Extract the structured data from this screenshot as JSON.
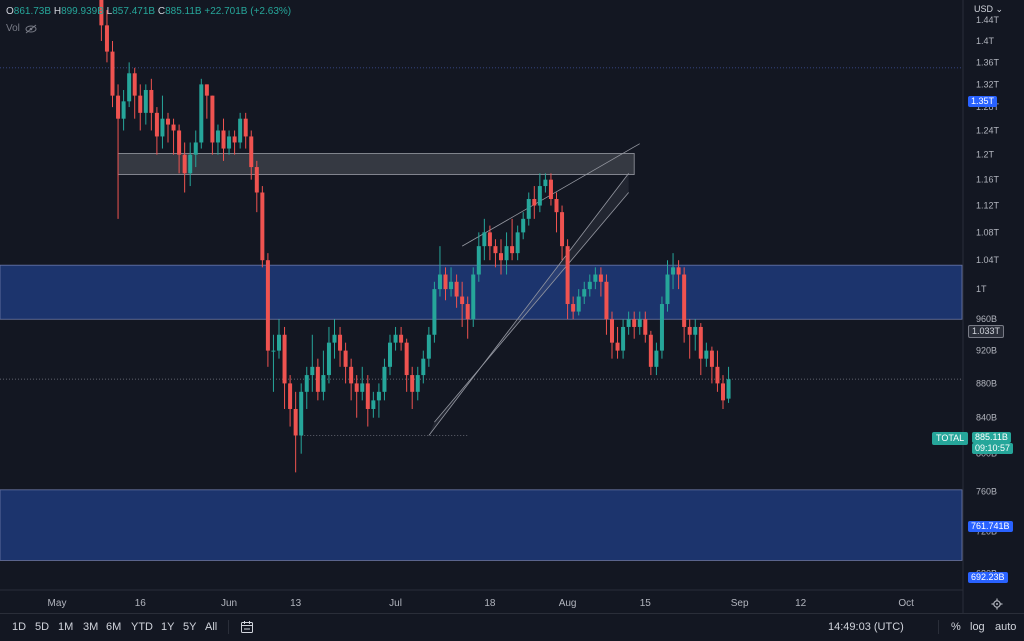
{
  "header": {
    "open_label": "O",
    "open": "861.73B",
    "high_label": "H",
    "high": "899.939B",
    "low_label": "L",
    "low": "857.471B",
    "close_label": "C",
    "close": "885.11B",
    "change": "+22.701B (+2.63%)",
    "vol_label": "Vol"
  },
  "currency": "USD",
  "symbol_label": "TOTAL",
  "price_tags": {
    "level_1": "1.35T",
    "level_2": "1.033T",
    "current": "885.11B",
    "countdown": "09:10:57",
    "level_3": "761.741B",
    "level_4": "692.23B"
  },
  "colors": {
    "up": "#26a69a",
    "down": "#ef5350",
    "zone": "#1e3a7a",
    "accent": "#2962ff",
    "background": "#131722"
  },
  "toolbar": {
    "timeframes": [
      "1D",
      "5D",
      "1M",
      "3M",
      "6M",
      "YTD",
      "1Y",
      "5Y",
      "All"
    ],
    "clock": "14:49:03 (UTC)",
    "percent_label": "%",
    "log_label": "log",
    "auto_label": "auto",
    "calendar_icon": "calendar-range-icon",
    "settings_icon": "gear-icon"
  },
  "chart_data": {
    "type": "candlestick",
    "y_unit": "USD",
    "y_scale": "log",
    "ylim": [
      665000000000,
      1480000000000
    ],
    "xlim": [
      0,
      145
    ],
    "y_ticks": [
      {
        "v": 1440000000000,
        "label": "1.44T"
      },
      {
        "v": 1400000000000,
        "label": "1.4T"
      },
      {
        "v": 1360000000000,
        "label": "1.36T"
      },
      {
        "v": 1320000000000,
        "label": "1.32T"
      },
      {
        "v": 1280000000000,
        "label": "1.28T"
      },
      {
        "v": 1240000000000,
        "label": "1.24T"
      },
      {
        "v": 1200000000000,
        "label": "1.2T"
      },
      {
        "v": 1160000000000,
        "label": "1.16T"
      },
      {
        "v": 1120000000000,
        "label": "1.12T"
      },
      {
        "v": 1080000000000,
        "label": "1.08T"
      },
      {
        "v": 1040000000000,
        "label": "1.04T"
      },
      {
        "v": 1000000000000,
        "label": "1T"
      },
      {
        "v": 960000000000,
        "label": "960B"
      },
      {
        "v": 920000000000,
        "label": "920B"
      },
      {
        "v": 880000000000,
        "label": "880B"
      },
      {
        "v": 840000000000,
        "label": "840B"
      },
      {
        "v": 800000000000,
        "label": "800B"
      },
      {
        "v": 760000000000,
        "label": "760B"
      },
      {
        "v": 720000000000,
        "label": "720B"
      },
      {
        "v": 680000000000,
        "label": "680B"
      }
    ],
    "x_ticks": [
      {
        "d": 0,
        "label": "May"
      },
      {
        "d": 15,
        "label": "16"
      },
      {
        "d": 31,
        "label": "Jun"
      },
      {
        "d": 43,
        "label": "13"
      },
      {
        "d": 61,
        "label": "Jul"
      },
      {
        "d": 78,
        "label": "18"
      },
      {
        "d": 92,
        "label": "Aug"
      },
      {
        "d": 106,
        "label": "15"
      },
      {
        "d": 123,
        "label": "Sep"
      },
      {
        "d": 134,
        "label": "12"
      },
      {
        "d": 153,
        "label": "Oct"
      }
    ],
    "candles": [
      [
        8,
        1480000000000,
        1430000000000,
        1490000000000,
        1400000000000
      ],
      [
        9,
        1430000000000,
        1380000000000,
        1460000000000,
        1360000000000
      ],
      [
        10,
        1380000000000,
        1300000000000,
        1400000000000,
        1280000000000
      ],
      [
        11,
        1300000000000,
        1260000000000,
        1320000000000,
        1100000000000
      ],
      [
        12,
        1260000000000,
        1290000000000,
        1310000000000,
        1240000000000
      ],
      [
        13,
        1290000000000,
        1340000000000,
        1360000000000,
        1280000000000
      ],
      [
        14,
        1340000000000,
        1300000000000,
        1350000000000,
        1260000000000
      ],
      [
        15,
        1300000000000,
        1270000000000,
        1320000000000,
        1240000000000
      ],
      [
        16,
        1270000000000,
        1310000000000,
        1320000000000,
        1250000000000
      ],
      [
        17,
        1310000000000,
        1270000000000,
        1330000000000,
        1240000000000
      ],
      [
        18,
        1270000000000,
        1230000000000,
        1280000000000,
        1200000000000
      ],
      [
        19,
        1230000000000,
        1260000000000,
        1300000000000,
        1210000000000
      ],
      [
        20,
        1260000000000,
        1250000000000,
        1270000000000,
        1220000000000
      ],
      [
        21,
        1250000000000,
        1240000000000,
        1260000000000,
        1200000000000
      ],
      [
        22,
        1240000000000,
        1200000000000,
        1250000000000,
        1170000000000
      ],
      [
        23,
        1200000000000,
        1170000000000,
        1220000000000,
        1140000000000
      ],
      [
        24,
        1170000000000,
        1200000000000,
        1220000000000,
        1150000000000
      ],
      [
        25,
        1200000000000,
        1220000000000,
        1240000000000,
        1180000000000
      ],
      [
        26,
        1220000000000,
        1320000000000,
        1330000000000,
        1210000000000
      ],
      [
        27,
        1320000000000,
        1300000000000,
        1320000000000,
        1260000000000
      ],
      [
        28,
        1300000000000,
        1220000000000,
        1300000000000,
        1200000000000
      ],
      [
        29,
        1220000000000,
        1240000000000,
        1250000000000,
        1200000000000
      ],
      [
        30,
        1240000000000,
        1210000000000,
        1260000000000,
        1190000000000
      ],
      [
        31,
        1210000000000,
        1230000000000,
        1240000000000,
        1200000000000
      ],
      [
        32,
        1230000000000,
        1220000000000,
        1240000000000,
        1200000000000
      ],
      [
        33,
        1220000000000,
        1260000000000,
        1270000000000,
        1210000000000
      ],
      [
        34,
        1260000000000,
        1230000000000,
        1270000000000,
        1210000000000
      ],
      [
        35,
        1230000000000,
        1180000000000,
        1240000000000,
        1160000000000
      ],
      [
        36,
        1180000000000,
        1140000000000,
        1190000000000,
        1110000000000
      ],
      [
        37,
        1140000000000,
        1040000000000,
        1150000000000,
        1030000000000
      ],
      [
        38,
        1040000000000,
        920000000000,
        1050000000000,
        900000000000
      ],
      [
        39,
        920000000000,
        920000000000,
        940000000000,
        870000000000
      ],
      [
        40,
        920000000000,
        940000000000,
        960000000000,
        910000000000
      ],
      [
        41,
        940000000000,
        880000000000,
        950000000000,
        850000000000
      ],
      [
        42,
        880000000000,
        850000000000,
        890000000000,
        830000000000
      ],
      [
        43,
        850000000000,
        820000000000,
        870000000000,
        780000000000
      ],
      [
        44,
        820000000000,
        870000000000,
        880000000000,
        800000000000
      ],
      [
        45,
        870000000000,
        890000000000,
        900000000000,
        850000000000
      ],
      [
        46,
        890000000000,
        900000000000,
        940000000000,
        870000000000
      ],
      [
        47,
        900000000000,
        870000000000,
        910000000000,
        860000000000
      ],
      [
        48,
        870000000000,
        890000000000,
        920000000000,
        860000000000
      ],
      [
        49,
        890000000000,
        930000000000,
        950000000000,
        880000000000
      ],
      [
        50,
        930000000000,
        940000000000,
        960000000000,
        910000000000
      ],
      [
        51,
        940000000000,
        920000000000,
        950000000000,
        900000000000
      ],
      [
        52,
        920000000000,
        900000000000,
        930000000000,
        880000000000
      ],
      [
        53,
        900000000000,
        880000000000,
        910000000000,
        860000000000
      ],
      [
        54,
        880000000000,
        870000000000,
        890000000000,
        840000000000
      ],
      [
        55,
        870000000000,
        880000000000,
        900000000000,
        860000000000
      ],
      [
        56,
        880000000000,
        850000000000,
        890000000000,
        830000000000
      ],
      [
        57,
        850000000000,
        860000000000,
        870000000000,
        840000000000
      ],
      [
        58,
        860000000000,
        870000000000,
        880000000000,
        840000000000
      ],
      [
        59,
        870000000000,
        900000000000,
        910000000000,
        860000000000
      ],
      [
        60,
        900000000000,
        930000000000,
        940000000000,
        890000000000
      ],
      [
        61,
        930000000000,
        940000000000,
        950000000000,
        920000000000
      ],
      [
        62,
        940000000000,
        930000000000,
        950000000000,
        920000000000
      ],
      [
        63,
        930000000000,
        890000000000,
        935000000000,
        870000000000
      ],
      [
        64,
        890000000000,
        870000000000,
        900000000000,
        850000000000
      ],
      [
        65,
        870000000000,
        890000000000,
        900000000000,
        860000000000
      ],
      [
        66,
        890000000000,
        910000000000,
        920000000000,
        880000000000
      ],
      [
        67,
        910000000000,
        940000000000,
        950000000000,
        900000000000
      ],
      [
        68,
        940000000000,
        1000000000000,
        1010000000000,
        930000000000
      ],
      [
        69,
        1000000000000,
        1020000000000,
        1060000000000,
        990000000000
      ],
      [
        70,
        1020000000000,
        1000000000000,
        1030000000000,
        985000000000
      ],
      [
        71,
        1000000000000,
        1010000000000,
        1030000000000,
        990000000000
      ],
      [
        72,
        1010000000000,
        990000000000,
        1020000000000,
        975000000000
      ],
      [
        73,
        990000000000,
        980000000000,
        1010000000000,
        950000000000
      ],
      [
        74,
        980000000000,
        960000000000,
        990000000000,
        935000000000
      ],
      [
        75,
        960000000000,
        1020000000000,
        1030000000000,
        950000000000
      ],
      [
        76,
        1020000000000,
        1060000000000,
        1080000000000,
        1010000000000
      ],
      [
        77,
        1060000000000,
        1080000000000,
        1100000000000,
        1040000000000
      ],
      [
        78,
        1080000000000,
        1060000000000,
        1090000000000,
        1040000000000
      ],
      [
        79,
        1060000000000,
        1050000000000,
        1070000000000,
        1030000000000
      ],
      [
        80,
        1050000000000,
        1040000000000,
        1070000000000,
        1020000000000
      ],
      [
        81,
        1040000000000,
        1060000000000,
        1080000000000,
        1020000000000
      ],
      [
        82,
        1060000000000,
        1050000000000,
        1100000000000,
        1040000000000
      ],
      [
        83,
        1050000000000,
        1080000000000,
        1090000000000,
        1040000000000
      ],
      [
        84,
        1080000000000,
        1100000000000,
        1110000000000,
        1070000000000
      ],
      [
        85,
        1100000000000,
        1130000000000,
        1140000000000,
        1090000000000
      ],
      [
        86,
        1130000000000,
        1120000000000,
        1150000000000,
        1100000000000
      ],
      [
        87,
        1120000000000,
        1150000000000,
        1170000000000,
        1110000000000
      ],
      [
        88,
        1150000000000,
        1160000000000,
        1170000000000,
        1140000000000
      ],
      [
        89,
        1160000000000,
        1130000000000,
        1170000000000,
        1120000000000
      ],
      [
        90,
        1130000000000,
        1110000000000,
        1140000000000,
        1080000000000
      ],
      [
        91,
        1110000000000,
        1060000000000,
        1120000000000,
        1040000000000
      ],
      [
        92,
        1060000000000,
        980000000000,
        1070000000000,
        960000000000
      ],
      [
        93,
        980000000000,
        970000000000,
        990000000000,
        960000000000
      ],
      [
        94,
        970000000000,
        990000000000,
        1000000000000,
        965000000000
      ],
      [
        95,
        990000000000,
        1000000000000,
        1010000000000,
        980000000000
      ],
      [
        96,
        1000000000000,
        1010000000000,
        1020000000000,
        990000000000
      ],
      [
        97,
        1010000000000,
        1020000000000,
        1030000000000,
        1000000000000
      ],
      [
        98,
        1020000000000,
        1010000000000,
        1030000000000,
        990000000000
      ],
      [
        99,
        1010000000000,
        960000000000,
        1020000000000,
        940000000000
      ],
      [
        100,
        960000000000,
        930000000000,
        970000000000,
        910000000000
      ],
      [
        101,
        930000000000,
        920000000000,
        950000000000,
        910000000000
      ],
      [
        102,
        920000000000,
        950000000000,
        960000000000,
        910000000000
      ],
      [
        103,
        950000000000,
        960000000000,
        970000000000,
        940000000000
      ],
      [
        104,
        960000000000,
        950000000000,
        970000000000,
        935000000000
      ],
      [
        105,
        950000000000,
        960000000000,
        970000000000,
        940000000000
      ],
      [
        106,
        960000000000,
        940000000000,
        970000000000,
        930000000000
      ],
      [
        107,
        940000000000,
        900000000000,
        945000000000,
        890000000000
      ],
      [
        108,
        900000000000,
        920000000000,
        930000000000,
        890000000000
      ],
      [
        109,
        920000000000,
        980000000000,
        990000000000,
        910000000000
      ],
      [
        110,
        980000000000,
        1020000000000,
        1040000000000,
        970000000000
      ],
      [
        111,
        1020000000000,
        1030000000000,
        1050000000000,
        1000000000000
      ],
      [
        112,
        1030000000000,
        1020000000000,
        1040000000000,
        1000000000000
      ],
      [
        113,
        1020000000000,
        950000000000,
        1030000000000,
        930000000000
      ],
      [
        114,
        950000000000,
        940000000000,
        960000000000,
        910000000000
      ],
      [
        115,
        940000000000,
        950000000000,
        960000000000,
        920000000000
      ],
      [
        116,
        950000000000,
        910000000000,
        955000000000,
        890000000000
      ],
      [
        117,
        910000000000,
        920000000000,
        930000000000,
        900000000000
      ],
      [
        118,
        920000000000,
        900000000000,
        925000000000,
        880000000000
      ],
      [
        119,
        900000000000,
        880000000000,
        920000000000,
        870000000000
      ],
      [
        120,
        880000000000,
        860000000000,
        890000000000,
        850000000000
      ],
      [
        121,
        862000000000,
        885000000000,
        900000000000,
        857000000000
      ]
    ],
    "zones": [
      {
        "top": 1033000000000,
        "bottom": 960000000000,
        "d0": 0,
        "d1": 145,
        "kind": "blue"
      },
      {
        "top": 761741000000,
        "bottom": 692230000000,
        "d0": 0,
        "d1": 145,
        "kind": "blue"
      },
      {
        "top": 1202000000000,
        "bottom": 1168000000000,
        "d0": 11,
        "d1": 104,
        "kind": "gray"
      }
    ],
    "hlines": [
      {
        "v": 1350000000000,
        "style": "dotted",
        "color": "#3a4a8a"
      },
      {
        "v": 885110000000,
        "style": "dotted",
        "color": "#787b86"
      },
      {
        "v": 820000000000,
        "d0": 44,
        "d1": 74,
        "style": "dotted",
        "color": "#787b86"
      }
    ],
    "lines": [
      {
        "d0": 73,
        "v0": 1060000000000,
        "d1": 105,
        "v1": 1218000000000
      },
      {
        "d0": 67,
        "v0": 820000000000,
        "d1": 103,
        "v1": 1170000000000
      },
      {
        "d0": 68,
        "v0": 835000000000,
        "d1": 103,
        "v1": 1140000000000
      }
    ]
  }
}
